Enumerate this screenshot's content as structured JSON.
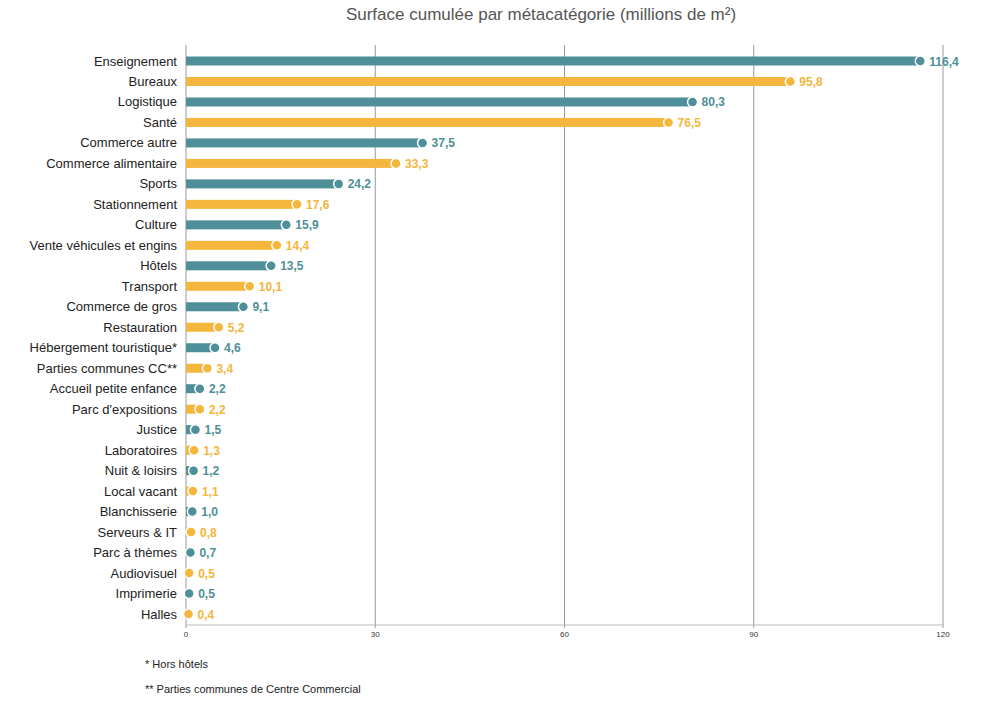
{
  "chart_data": {
    "type": "bar",
    "orientation": "horizontal",
    "title": "Surface cumulée par métacatégorie (millions de m²)",
    "categories": [
      "Enseignement",
      "Bureaux",
      "Logistique",
      "Santé",
      "Commerce autre",
      "Commerce alimentaire",
      "Sports",
      "Stationnement",
      "Culture",
      "Vente véhicules et engins",
      "Hôtels",
      "Transport",
      "Commerce de gros",
      "Restauration",
      "Hébergement touristique*",
      "Parties communes CC**",
      "Accueil petite enfance",
      "Parc d'expositions",
      "Justice",
      "Laboratoires",
      "Nuit & loisirs",
      "Local vacant",
      "Blanchisserie",
      "Serveurs & IT",
      "Parc à thèmes",
      "Audiovisuel",
      "Imprimerie",
      "Halles"
    ],
    "values": [
      116.4,
      95.8,
      80.3,
      76.5,
      37.5,
      33.3,
      24.2,
      17.6,
      15.9,
      14.4,
      13.5,
      10.1,
      9.1,
      5.2,
      4.6,
      3.4,
      2.2,
      2.2,
      1.5,
      1.3,
      1.2,
      1.1,
      1.0,
      0.8,
      0.7,
      0.5,
      0.5,
      0.4
    ],
    "value_labels": [
      "116,4",
      "95,8",
      "80,3",
      "76,5",
      "37,5",
      "33,3",
      "24,2",
      "17,6",
      "15,9",
      "14,4",
      "13,5",
      "10,1",
      "9,1",
      "5,2",
      "4,6",
      "3,4",
      "2,2",
      "2,2",
      "1,5",
      "1,3",
      "1,2",
      "1,1",
      "1,0",
      "0,8",
      "0,7",
      "0,5",
      "0,5",
      "0,4"
    ],
    "colors": [
      "#4e8f99",
      "#f4b63c",
      "#4e8f99",
      "#f4b63c",
      "#4e8f99",
      "#f4b63c",
      "#4e8f99",
      "#f4b63c",
      "#4e8f99",
      "#f4b63c",
      "#4e8f99",
      "#f4b63c",
      "#4e8f99",
      "#f4b63c",
      "#4e8f99",
      "#f4b63c",
      "#4e8f99",
      "#f4b63c",
      "#4e8f99",
      "#f4b63c",
      "#4e8f99",
      "#f4b63c",
      "#4e8f99",
      "#f4b63c",
      "#4e8f99",
      "#f4b63c",
      "#4e8f99",
      "#f4b63c"
    ],
    "xlim": [
      0,
      120
    ],
    "xticks": [
      0,
      30,
      60,
      90,
      120
    ],
    "grid": true,
    "data_labels": true,
    "annotations": [
      "* Hors hôtels",
      "** Parties communes de Centre Commercial"
    ]
  }
}
